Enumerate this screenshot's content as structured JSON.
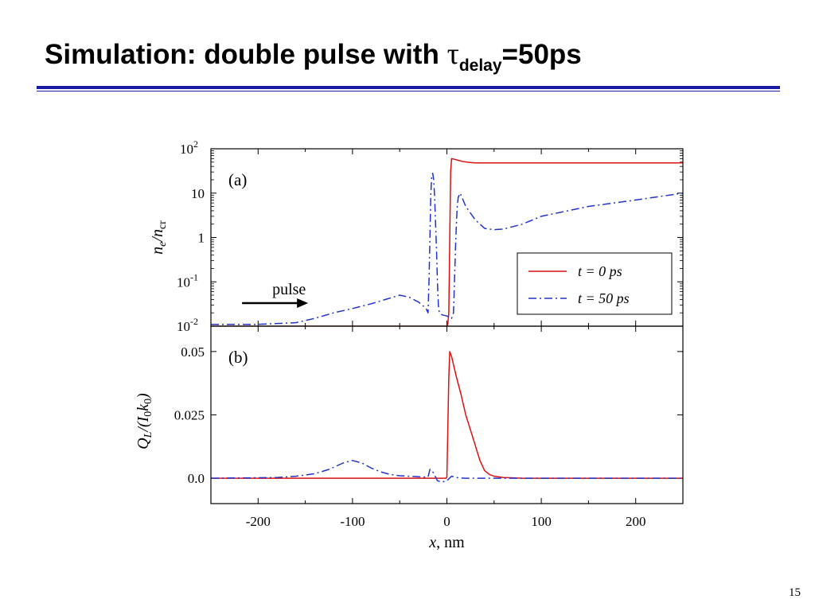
{
  "slide": {
    "title_main": "Simulation: double pulse with ",
    "title_symbol": "τ",
    "title_subscript": "delay",
    "title_tail": "=50ps",
    "page_number": "15",
    "accent_color": "#1a1aa6"
  },
  "chart_data": [
    {
      "type": "line",
      "panel_label": "(a)",
      "ylabel": "n_e/n_cr",
      "y_scale": "log",
      "xlim": [
        -250,
        250
      ],
      "ylim": [
        0.01,
        100
      ],
      "y_ticks": [
        {
          "value": 100,
          "label": "10",
          "exp": "2"
        },
        {
          "value": 10,
          "label": "10",
          "exp": ""
        },
        {
          "value": 1,
          "label": "1",
          "exp": ""
        },
        {
          "value": 0.1,
          "label": "10",
          "exp": "-1"
        },
        {
          "value": 0.01,
          "label": "10",
          "exp": "-2"
        }
      ],
      "annotation": {
        "text": "pulse",
        "arrow": "right"
      },
      "legend": {
        "placement": "lower-right"
      },
      "series": [
        {
          "name": "t = 0 ps",
          "color": "#dd1111",
          "dash": "solid",
          "x": [
            -250,
            0,
            1,
            2,
            3,
            4,
            5,
            8,
            12,
            18,
            25,
            30,
            40,
            100,
            250
          ],
          "y": [
            0.01,
            0.01,
            0.011,
            0.02,
            1,
            30,
            60,
            58,
            55,
            51,
            49,
            48,
            48,
            48,
            48
          ]
        },
        {
          "name": "t = 50 ps",
          "color": "#2233cc",
          "dash": "dashdot",
          "x": [
            -250,
            -200,
            -160,
            -140,
            -120,
            -100,
            -80,
            -65,
            -50,
            -40,
            -30,
            -22,
            -20,
            -19,
            -18,
            -17,
            -16,
            -15,
            -14,
            -13,
            -12,
            -11,
            -10,
            -9,
            -8,
            -5,
            0,
            5,
            7,
            8,
            9,
            10,
            11,
            12,
            14,
            16,
            20,
            30,
            40,
            50,
            60,
            80,
            100,
            150,
            200,
            250
          ],
          "y": [
            0.011,
            0.011,
            0.012,
            0.015,
            0.02,
            0.025,
            0.032,
            0.04,
            0.05,
            0.045,
            0.035,
            0.025,
            0.02,
            0.1,
            1,
            10,
            25,
            28,
            20,
            8,
            2,
            0.5,
            0.1,
            0.03,
            0.02,
            0.018,
            0.017,
            0.015,
            0.02,
            0.1,
            0.5,
            2,
            5,
            8,
            10,
            8,
            5,
            2.5,
            1.6,
            1.5,
            1.55,
            2,
            3,
            5,
            7,
            10
          ]
        }
      ]
    },
    {
      "type": "line",
      "panel_label": "(b)",
      "ylabel": "Q_L/(I_0 k_0)",
      "xlabel": "x, nm",
      "xlim": [
        -250,
        250
      ],
      "ylim": [
        -0.01,
        0.06
      ],
      "x_ticks": [
        {
          "value": -200,
          "label": "-200"
        },
        {
          "value": -100,
          "label": "-100"
        },
        {
          "value": 0,
          "label": "0"
        },
        {
          "value": 100,
          "label": "100"
        },
        {
          "value": 200,
          "label": "200"
        }
      ],
      "y_ticks": [
        {
          "value": 0.05,
          "label": "0.05"
        },
        {
          "value": 0.025,
          "label": "0.025"
        },
        {
          "value": 0,
          "label": "0.0"
        }
      ],
      "series": [
        {
          "name": "t = 0 ps",
          "color": "#dd1111",
          "dash": "solid",
          "x": [
            -250,
            -5,
            -1,
            0,
            1,
            2,
            3,
            5,
            10,
            15,
            20,
            25,
            30,
            35,
            40,
            45,
            50,
            60,
            80,
            100,
            250
          ],
          "y": [
            0,
            0,
            0,
            0.0005,
            0.02,
            0.04,
            0.05,
            0.048,
            0.04,
            0.033,
            0.025,
            0.019,
            0.013,
            0.007,
            0.003,
            0.0015,
            0.0008,
            0.0003,
            0,
            0,
            0
          ]
        },
        {
          "name": "t = 50 ps",
          "color": "#2233cc",
          "dash": "dashdot",
          "x": [
            -250,
            -200,
            -180,
            -160,
            -140,
            -125,
            -110,
            -100,
            -90,
            -80,
            -70,
            -60,
            -50,
            -40,
            -30,
            -25,
            -20,
            -18,
            -16,
            -14,
            -12,
            -10,
            -5,
            0,
            5,
            10,
            15,
            20,
            30,
            50,
            250
          ],
          "y": [
            0,
            0.0002,
            0.0003,
            0.0008,
            0.0018,
            0.0035,
            0.006,
            0.007,
            0.006,
            0.004,
            0.0025,
            0.0015,
            0.001,
            0.0008,
            0.0006,
            0.0005,
            0.0005,
            0.0035,
            0.003,
            0.002,
            0.0005,
            -0.001,
            -0.0015,
            -0.001,
            0.0008,
            0.0003,
            0.0001,
            0,
            0,
            0,
            0
          ]
        }
      ]
    }
  ]
}
